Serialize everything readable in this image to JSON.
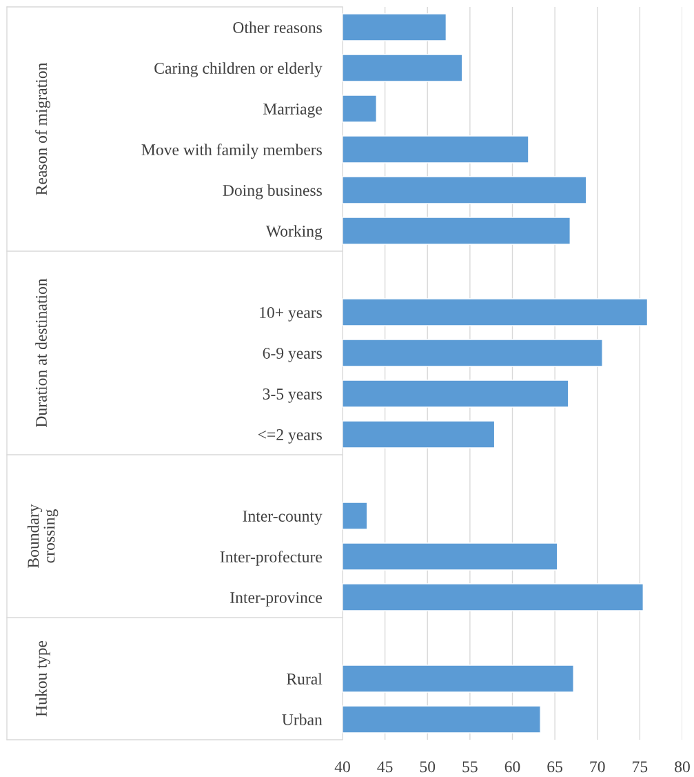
{
  "chart_data": {
    "type": "bar",
    "orientation": "horizontal",
    "categories": [
      "Other reasons",
      "Caring children or elderly",
      "Marriage",
      "Move with family members",
      "Doing business",
      "Working",
      null,
      "10+ years",
      "6-9 years",
      "3-5 years",
      "<=2 years",
      null,
      "Inter-county",
      "Inter-profecture",
      "Inter-province",
      null,
      "Rural",
      "Urban"
    ],
    "values": [
      52.2,
      54.1,
      44.0,
      61.9,
      68.7,
      66.8,
      null,
      75.9,
      70.6,
      66.6,
      57.9,
      null,
      42.9,
      65.3,
      75.4,
      null,
      67.2,
      63.3
    ],
    "color": "#5b9bd5",
    "xlim": [
      40,
      80
    ],
    "xticks": [
      40,
      45,
      50,
      55,
      60,
      65,
      70,
      75,
      80
    ],
    "grid": "x",
    "annotations": [
      "Reason of migration",
      "Duration at destination",
      "Boundary\ncrossing",
      "Hukou type"
    ]
  }
}
